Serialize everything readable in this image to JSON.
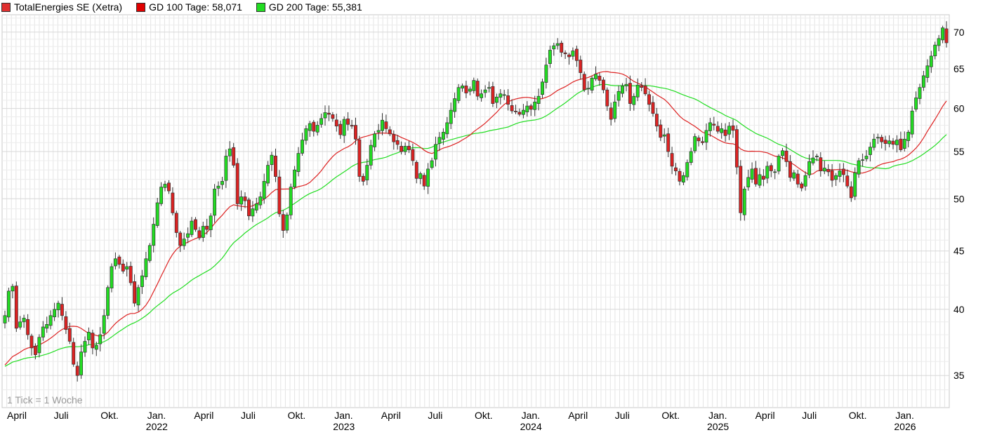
{
  "legend": {
    "main": {
      "label": "TotalEnergies SE (Xetra)",
      "color": "#e03030"
    },
    "gd100": {
      "label": "GD 100 Tage: 58,071",
      "color": "#e00000"
    },
    "gd200": {
      "label": "GD 200 Tage: 55,381",
      "color": "#22dd22"
    }
  },
  "tick_note": "1 Tick = 1 Woche",
  "chart_data": {
    "type": "candlestick",
    "scale": "log",
    "ylim": [
      32.8,
      72.5
    ],
    "yticks": [
      35,
      40,
      45,
      50,
      55,
      60,
      65,
      70
    ],
    "grid": true,
    "x_months": [
      {
        "label": "April",
        "year": ""
      },
      {
        "label": "Juli",
        "year": ""
      },
      {
        "label": "Okt.",
        "year": ""
      },
      {
        "label": "Jan.",
        "year": "2022"
      },
      {
        "label": "April",
        "year": ""
      },
      {
        "label": "Juli",
        "year": ""
      },
      {
        "label": "Okt.",
        "year": ""
      },
      {
        "label": "Jan.",
        "year": "2023"
      },
      {
        "label": "April",
        "year": ""
      },
      {
        "label": "Juli",
        "year": ""
      },
      {
        "label": "Okt.",
        "year": ""
      },
      {
        "label": "Jan.",
        "year": "2024"
      },
      {
        "label": "April",
        "year": ""
      },
      {
        "label": "Juli",
        "year": ""
      },
      {
        "label": "Okt.",
        "year": ""
      },
      {
        "label": "Jan.",
        "year": "2025"
      },
      {
        "label": "April",
        "year": ""
      },
      {
        "label": "Juli",
        "year": ""
      },
      {
        "label": "Okt.",
        "year": ""
      },
      {
        "label": "Jan.",
        "year": "2026"
      }
    ],
    "up_color": "#22dd22",
    "down_color": "#dd2222",
    "weekly_close": [
      39.5,
      41.5,
      41.9,
      38.5,
      39.0,
      39.3,
      38.0,
      37.0,
      36.5,
      37.8,
      38.6,
      38.8,
      39.5,
      40.0,
      40.5,
      39.5,
      38.4,
      37.5,
      35.8,
      35.0,
      36.7,
      37.5,
      38.2,
      37.0,
      37.2,
      38.0,
      39.5,
      41.8,
      43.6,
      44.3,
      43.8,
      43.2,
      43.6,
      42.2,
      40.5,
      41.8,
      42.8,
      44.3,
      45.5,
      47.5,
      49.6,
      51.2,
      51.5,
      50.8,
      48.6,
      46.7,
      45.5,
      46.1,
      46.6,
      47.8,
      47.0,
      46.2,
      47.3,
      47.0,
      48.3,
      51.0,
      51.3,
      51.8,
      54.5,
      55.3,
      53.5,
      49.5,
      50.2,
      49.8,
      48.3,
      49.0,
      49.5,
      50.2,
      51.8,
      53.5,
      54.6,
      52.3,
      48.5,
      46.9,
      48.4,
      51.2,
      53.0,
      54.8,
      56.3,
      57.6,
      58.2,
      57.3,
      58.0,
      58.8,
      59.5,
      59.3,
      58.8,
      57.9,
      56.9,
      58.7,
      58.1,
      57.9,
      56.4,
      52.3,
      51.8,
      53.5,
      55.7,
      57.0,
      57.4,
      58.6,
      57.6,
      57.0,
      56.1,
      55.8,
      55.0,
      55.6,
      55.2,
      54.0,
      52.1,
      52.6,
      51.3,
      53.1,
      54.0,
      55.8,
      56.6,
      57.2,
      58.3,
      59.8,
      61.2,
      62.6,
      62.8,
      61.9,
      62.4,
      63.5,
      61.5,
      61.8,
      62.3,
      62.6,
      60.6,
      61.4,
      61.8,
      61.7,
      60.5,
      59.7,
      59.6,
      59.3,
      59.8,
      60.3,
      59.9,
      60.8,
      61.5,
      63.3,
      65.5,
      67.5,
      68.1,
      68.4,
      67.2,
      67.0,
      66.6,
      67.4,
      66.1,
      64.5,
      62.3,
      62.5,
      63.8,
      64.3,
      63.5,
      62.3,
      60.3,
      58.7,
      60.8,
      62.1,
      62.8,
      63.0,
      60.6,
      61.5,
      62.9,
      62.6,
      61.8,
      60.5,
      59.4,
      57.9,
      56.6,
      56.9,
      55.0,
      53.4,
      52.9,
      51.8,
      52.4,
      53.8,
      55.0,
      56.7,
      56.2,
      56.0,
      57.4,
      58.3,
      58.0,
      57.3,
      57.6,
      56.8,
      57.9,
      57.4,
      53.3,
      48.6,
      51.0,
      52.2,
      53.1,
      51.5,
      52.5,
      52.0,
      53.4,
      52.9,
      52.8,
      54.5,
      55.1,
      53.9,
      52.2,
      52.7,
      51.5,
      51.1,
      52.4,
      53.9,
      54.3,
      54.5,
      52.9,
      53.2,
      52.8,
      51.9,
      52.4,
      52.9,
      52.5,
      51.3,
      50.1,
      52.7,
      54.0,
      54.1,
      54.5,
      55.5,
      56.4,
      56.6,
      56.1,
      55.9,
      56.2,
      55.8,
      56.3,
      55.2,
      56.4,
      57.2,
      59.7,
      61.3,
      62.6,
      64.1,
      65.4,
      66.7,
      68.2,
      69.1,
      70.6,
      68.5
    ]
  }
}
